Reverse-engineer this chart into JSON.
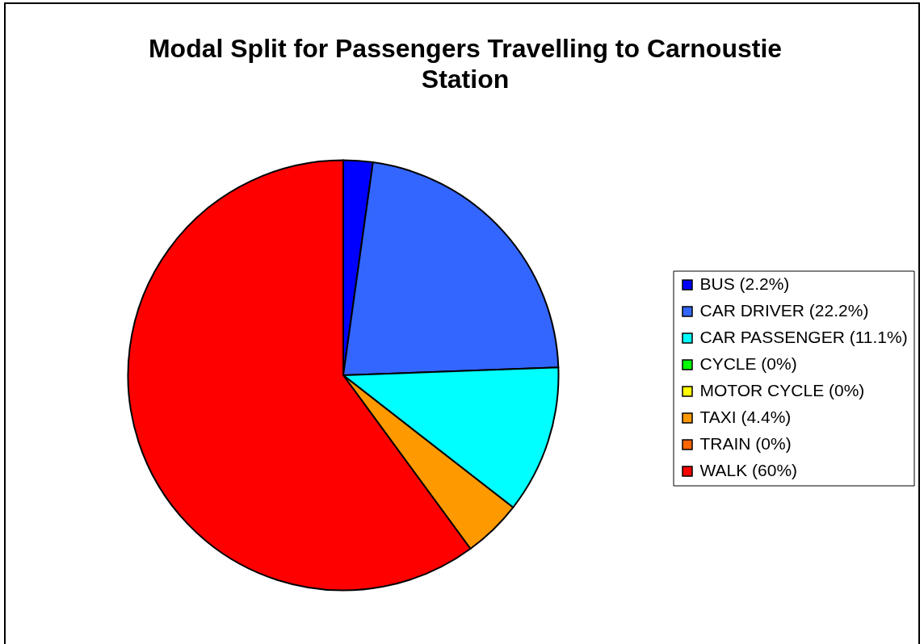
{
  "chart_data": {
    "type": "pie",
    "title": "Modal Split for Passengers Travelling to Carnoustie Station",
    "categories": [
      "BUS (2.2%)",
      "CAR DRIVER (22.2%)",
      "CAR PASSENGER (11.1%)",
      "CYCLE (0%)",
      "MOTOR CYCLE (0%)",
      "TAXI (4.4%)",
      "TRAIN (0%)",
      "WALK (60%)"
    ],
    "values": [
      2.2,
      22.2,
      11.1,
      0,
      0,
      4.4,
      0,
      60
    ],
    "colors": [
      "#0000ff",
      "#3366ff",
      "#00ffff",
      "#00ff00",
      "#ffff00",
      "#ff9900",
      "#ff6600",
      "#ff0000"
    ],
    "legend": "right"
  }
}
